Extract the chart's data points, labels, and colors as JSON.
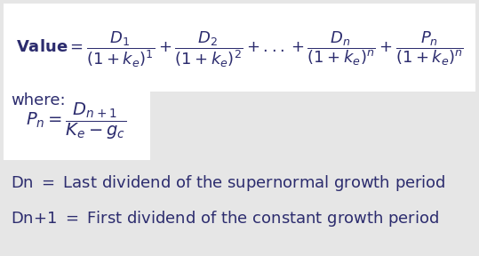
{
  "bg_color": "#e6e6e6",
  "white_box_color": "#ffffff",
  "text_color": "#2c2c6e",
  "body_fontsize": 13,
  "formula_fontsize": 13,
  "small_formula_fontsize": 13
}
